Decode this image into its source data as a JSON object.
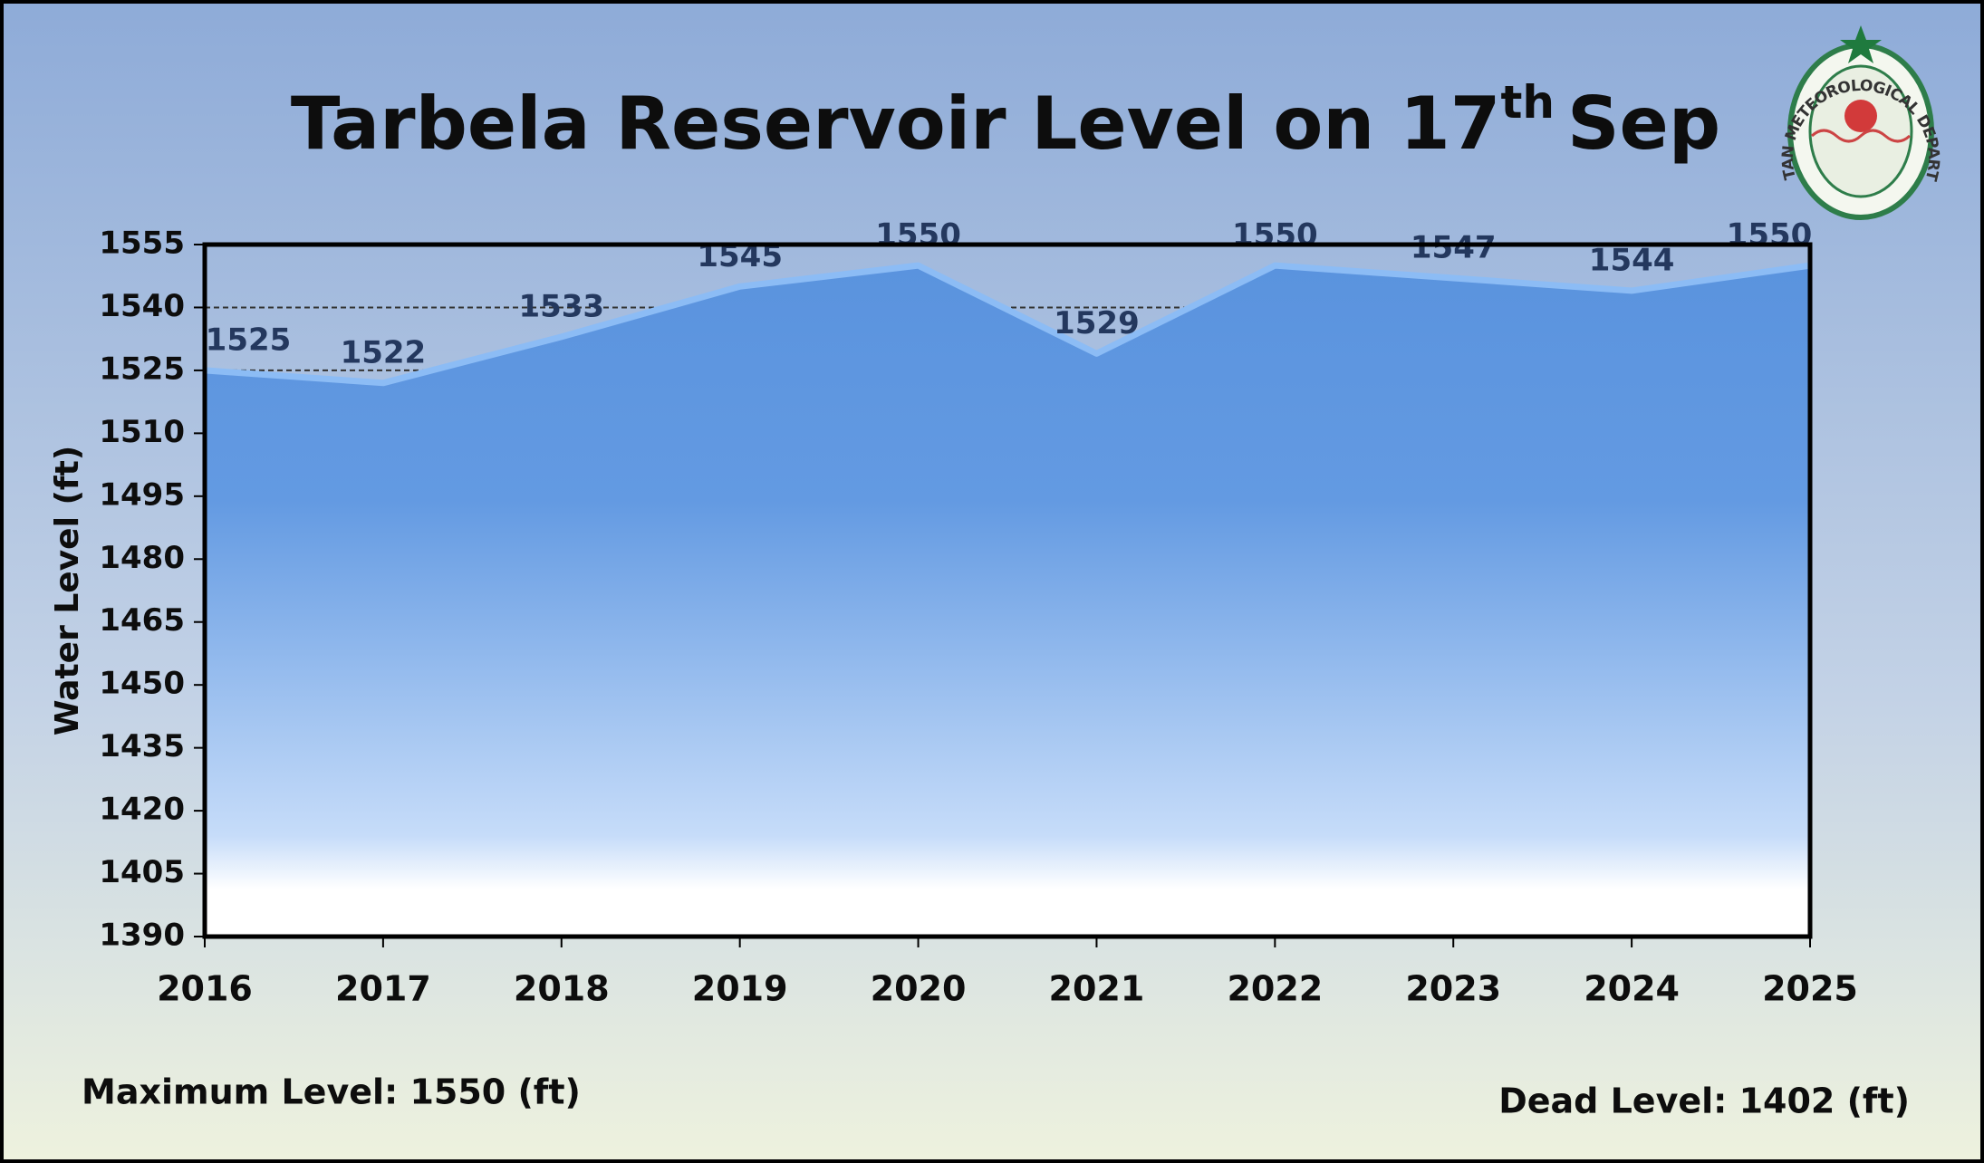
{
  "chart_data": {
    "type": "area",
    "title": "Tarbela Reservoir Level on 17",
    "title_superscript": "th",
    "title_end": "Sep",
    "y_label": "Water Level (ft)",
    "categories": [
      "2016",
      "2017",
      "2018",
      "2019",
      "2020",
      "2021",
      "2022",
      "2023",
      "2024",
      "2025"
    ],
    "values": [
      1525,
      1522,
      1533,
      1545,
      1550,
      1529,
      1550,
      1547,
      1544,
      1550
    ],
    "color": "#5b96e0",
    "ylim": [
      1390,
      1555
    ],
    "yticks": [
      1390,
      1405,
      1420,
      1435,
      1450,
      1465,
      1480,
      1495,
      1510,
      1525,
      1540,
      1555
    ],
    "grid": true,
    "annotations": [
      "Maximum Level: 1550 (ft)",
      "Dead Level: 1402 (ft)"
    ],
    "logo_text": "PAKISTAN METEOROLOGICAL DEPARTMENT"
  }
}
